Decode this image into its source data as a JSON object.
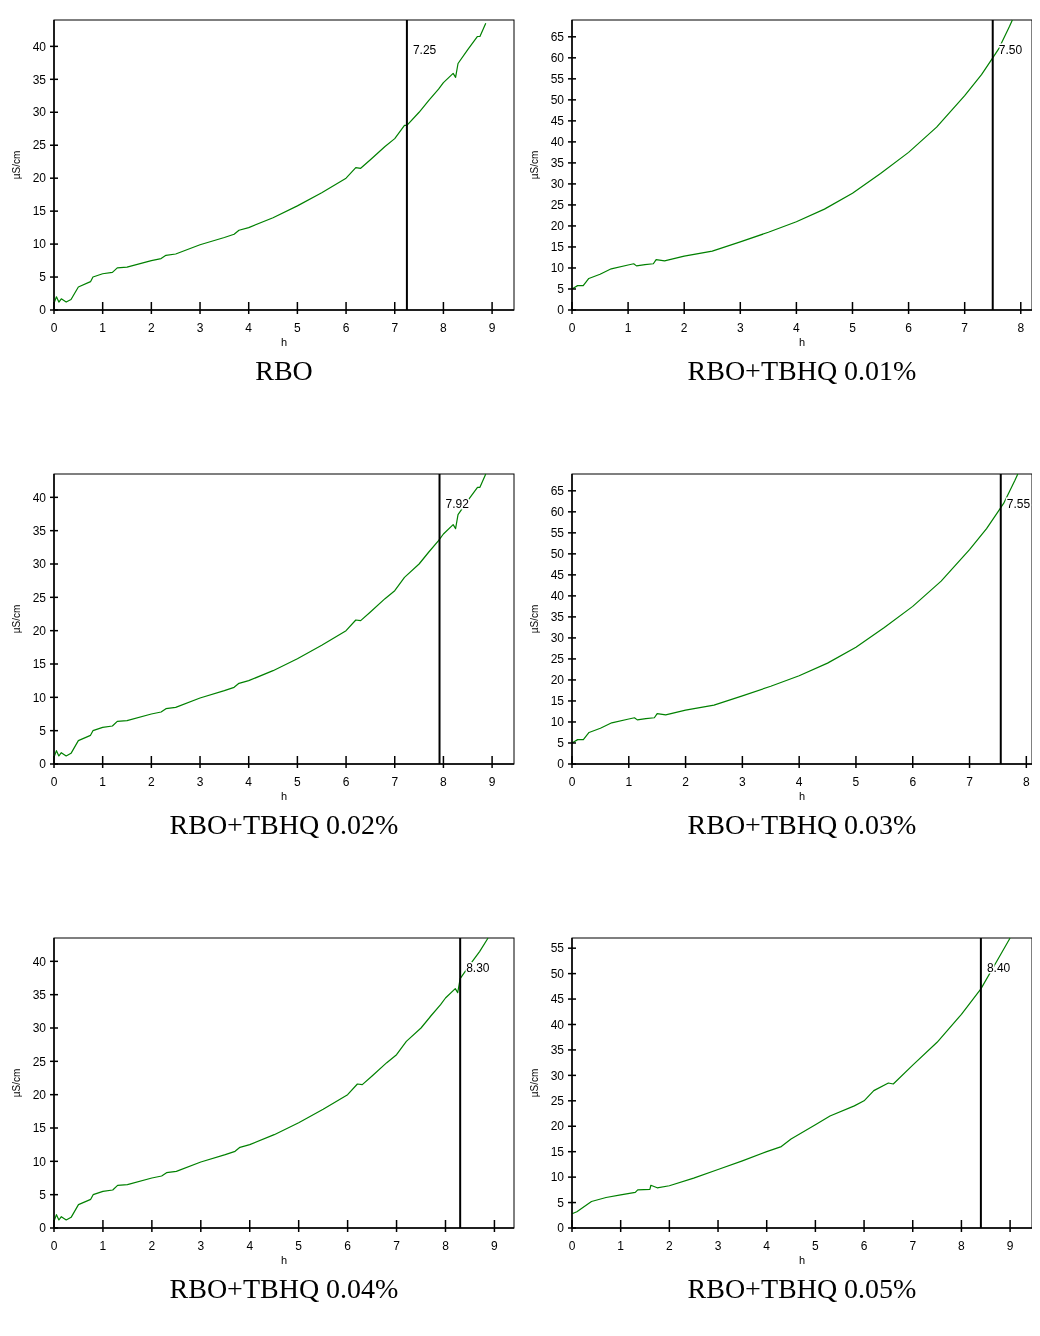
{
  "chart_data": [
    {
      "type": "line",
      "title": "RBO",
      "xlabel": "h",
      "ylabel": "µS/cm",
      "xlim": [
        0,
        9.45
      ],
      "ylim": [
        0,
        44
      ],
      "xticks": [
        0,
        1,
        2,
        3,
        4,
        5,
        6,
        7,
        8,
        9
      ],
      "yticks": [
        0,
        5,
        10,
        15,
        20,
        25,
        30,
        35,
        40
      ],
      "ref_lines": [
        {
          "axis": "x",
          "value": 7.25,
          "label": "7.25",
          "color": "#000000"
        }
      ],
      "series": [
        {
          "color": "#008000",
          "x": [
            0,
            0.05,
            0.1,
            0.15,
            0.25,
            0.35,
            0.5,
            0.75,
            0.8,
            1,
            1.2,
            1.3,
            1.5,
            2,
            2.2,
            2.3,
            2.5,
            3,
            3.5,
            3.7,
            3.8,
            4,
            4.5,
            5,
            5.5,
            6,
            6.2,
            6.3,
            6.5,
            6.8,
            7,
            7.2,
            7.25,
            7.5,
            7.7,
            7.9,
            8,
            8.2,
            8.25,
            8.3,
            8.5,
            8.7,
            8.75,
            8.87
          ],
          "values": [
            1,
            2,
            1.2,
            1.7,
            1.2,
            1.6,
            3.5,
            4.3,
            5,
            5.5,
            5.7,
            6.4,
            6.5,
            7.5,
            7.8,
            8.3,
            8.5,
            9.9,
            11,
            11.5,
            12.1,
            12.5,
            14,
            15.8,
            17.8,
            20,
            21.6,
            21.5,
            22.8,
            24.8,
            26,
            28,
            28,
            30,
            31.8,
            33.5,
            34.5,
            35.9,
            35.3,
            37.4,
            39.5,
            41.5,
            41.5,
            43.5
          ]
        }
      ]
    },
    {
      "type": "line",
      "title": "RBO+TBHQ 0.01%",
      "xlabel": "h",
      "ylabel": "µS/cm",
      "xlim": [
        0,
        8.2
      ],
      "ylim": [
        0,
        69
      ],
      "xticks": [
        0,
        1,
        2,
        3,
        4,
        5,
        6,
        7,
        8
      ],
      "yticks": [
        0,
        5,
        10,
        15,
        20,
        25,
        30,
        35,
        40,
        45,
        50,
        55,
        60,
        65
      ],
      "ref_lines": [
        {
          "axis": "x",
          "value": 7.5,
          "label": "7.50",
          "color": "#000000"
        }
      ],
      "series": [
        {
          "color": "#008000",
          "x": [
            0,
            0.1,
            0.2,
            0.3,
            0.5,
            0.7,
            1,
            1.1,
            1.15,
            1.3,
            1.45,
            1.5,
            1.65,
            2,
            2.5,
            3,
            3.5,
            4,
            4.5,
            5,
            5.5,
            6,
            6.5,
            7,
            7.3,
            7.5,
            7.6,
            7.8,
            7.85
          ],
          "values": [
            5,
            5.8,
            5.8,
            7.5,
            8.5,
            9.8,
            10.7,
            11,
            10.5,
            10.8,
            11,
            12,
            11.7,
            12.8,
            14,
            16.2,
            18.5,
            21,
            24,
            27.8,
            32.5,
            37.5,
            43.5,
            51,
            56,
            60,
            62,
            67.5,
            69
          ]
        }
      ]
    },
    {
      "type": "line",
      "title": "RBO+TBHQ 0.02%",
      "xlabel": "h",
      "ylabel": "µS/cm",
      "xlim": [
        0,
        9.45
      ],
      "ylim": [
        0,
        43.5
      ],
      "xticks": [
        0,
        1,
        2,
        3,
        4,
        5,
        6,
        7,
        8,
        9
      ],
      "yticks": [
        0,
        5,
        10,
        15,
        20,
        25,
        30,
        35,
        40
      ],
      "ref_lines": [
        {
          "axis": "x",
          "value": 7.92,
          "label": "7.92",
          "color": "#000000"
        }
      ],
      "series": [
        {
          "color": "#008000",
          "x": [
            0,
            0.05,
            0.1,
            0.15,
            0.25,
            0.35,
            0.5,
            0.75,
            0.8,
            1,
            1.2,
            1.3,
            1.5,
            2,
            2.2,
            2.3,
            2.5,
            3,
            3.5,
            3.7,
            3.8,
            4,
            4.5,
            5,
            5.5,
            6,
            6.2,
            6.3,
            6.5,
            6.8,
            7,
            7.2,
            7.5,
            7.7,
            7.9,
            8,
            8.2,
            8.25,
            8.3,
            8.5,
            8.7,
            8.75,
            8.87
          ],
          "values": [
            1,
            2,
            1.2,
            1.7,
            1.2,
            1.6,
            3.5,
            4.3,
            5,
            5.5,
            5.7,
            6.4,
            6.5,
            7.5,
            7.8,
            8.3,
            8.5,
            9.9,
            11,
            11.5,
            12.1,
            12.5,
            14,
            15.8,
            17.8,
            20,
            21.6,
            21.5,
            22.8,
            24.8,
            26,
            28,
            30,
            31.8,
            33.5,
            34.5,
            35.9,
            35.3,
            37.4,
            39.5,
            41.5,
            41.5,
            43.5
          ]
        }
      ]
    },
    {
      "type": "line",
      "title": "RBO+TBHQ 0.03%",
      "xlabel": "h",
      "ylabel": "µS/cm",
      "xlim": [
        0,
        8.1
      ],
      "ylim": [
        0,
        69
      ],
      "xticks": [
        0,
        1,
        2,
        3,
        4,
        5,
        6,
        7,
        8
      ],
      "yticks": [
        0,
        5,
        10,
        15,
        20,
        25,
        30,
        35,
        40,
        45,
        50,
        55,
        60,
        65
      ],
      "ref_lines": [
        {
          "axis": "x",
          "value": 7.55,
          "label": "7.55",
          "color": "#000000"
        }
      ],
      "series": [
        {
          "color": "#008000",
          "x": [
            0,
            0.1,
            0.2,
            0.3,
            0.5,
            0.7,
            1,
            1.1,
            1.15,
            1.3,
            1.45,
            1.5,
            1.65,
            2,
            2.5,
            3,
            3.5,
            4,
            4.5,
            5,
            5.5,
            6,
            6.5,
            7,
            7.3,
            7.5,
            7.6,
            7.8,
            7.85
          ],
          "values": [
            5,
            5.8,
            5.8,
            7.5,
            8.5,
            9.8,
            10.7,
            11,
            10.5,
            10.8,
            11,
            12,
            11.7,
            12.8,
            14,
            16.2,
            18.5,
            21,
            24,
            27.8,
            32.5,
            37.5,
            43.5,
            51,
            56,
            60,
            62,
            67.5,
            69
          ]
        }
      ]
    },
    {
      "type": "line",
      "title": "RBO+TBHQ 0.04%",
      "xlabel": "h",
      "ylabel": "µS/cm",
      "xlim": [
        0,
        9.4
      ],
      "ylim": [
        0,
        43.5
      ],
      "xticks": [
        0,
        1,
        2,
        3,
        4,
        5,
        6,
        7,
        8,
        9
      ],
      "yticks": [
        0,
        5,
        10,
        15,
        20,
        25,
        30,
        35,
        40
      ],
      "ref_lines": [
        {
          "axis": "x",
          "value": 8.3,
          "label": "8.30",
          "color": "#000000"
        }
      ],
      "series": [
        {
          "color": "#008000",
          "x": [
            0,
            0.05,
            0.1,
            0.15,
            0.25,
            0.35,
            0.5,
            0.75,
            0.8,
            1,
            1.2,
            1.3,
            1.5,
            2,
            2.2,
            2.3,
            2.5,
            3,
            3.5,
            3.7,
            3.8,
            4,
            4.5,
            5,
            5.5,
            6,
            6.2,
            6.3,
            6.5,
            6.8,
            7,
            7.2,
            7.5,
            7.7,
            7.9,
            8,
            8.2,
            8.25,
            8.3,
            8.5,
            8.7,
            8.87
          ],
          "values": [
            1,
            2,
            1.2,
            1.7,
            1.2,
            1.6,
            3.5,
            4.3,
            5,
            5.5,
            5.7,
            6.4,
            6.5,
            7.5,
            7.8,
            8.3,
            8.5,
            9.9,
            11,
            11.5,
            12.1,
            12.5,
            14,
            15.8,
            17.8,
            20,
            21.6,
            21.5,
            22.8,
            24.8,
            26,
            28,
            30,
            31.8,
            33.5,
            34.5,
            35.9,
            35.3,
            37.4,
            39.5,
            41.5,
            43.5
          ]
        }
      ]
    },
    {
      "type": "line",
      "title": "RBO+TBHQ 0.05%",
      "xlabel": "h",
      "ylabel": "µS/cm",
      "xlim": [
        0,
        9.45
      ],
      "ylim": [
        0,
        57
      ],
      "xticks": [
        0,
        1,
        2,
        3,
        4,
        5,
        6,
        7,
        8,
        9
      ],
      "yticks": [
        0,
        5,
        10,
        15,
        20,
        25,
        30,
        35,
        40,
        45,
        50,
        55
      ],
      "ref_lines": [
        {
          "axis": "x",
          "value": 8.4,
          "label": "8.40",
          "color": "#000000"
        }
      ],
      "series": [
        {
          "color": "#008000",
          "x": [
            0,
            0.1,
            0.4,
            0.7,
            1,
            1.3,
            1.35,
            1.6,
            1.62,
            1.75,
            2,
            2.5,
            3,
            3.5,
            4,
            4.3,
            4.5,
            5,
            5.3,
            5.8,
            6,
            6.2,
            6.5,
            6.6,
            7,
            7.5,
            8,
            8.4,
            8.7,
            9
          ],
          "values": [
            2.8,
            3.2,
            5.2,
            6,
            6.5,
            7,
            7.5,
            7.6,
            8.4,
            7.9,
            8.3,
            9.8,
            11.5,
            13.2,
            15,
            16,
            17.5,
            20.3,
            22,
            24,
            25,
            27,
            28.5,
            28.3,
            32,
            36.5,
            42,
            47,
            52,
            57
          ]
        }
      ]
    }
  ]
}
